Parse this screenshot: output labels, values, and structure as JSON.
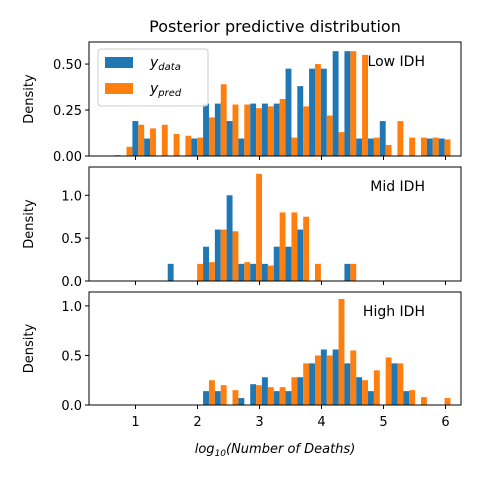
{
  "title": "Posterior predictive distribution",
  "colors": {
    "data": "#1f77b4",
    "pred": "#ff7f0e"
  },
  "legend": {
    "data_label": "y",
    "data_sub": "data",
    "pred_label": "y",
    "pred_sub": "pred"
  },
  "xlabel_pre": "log",
  "xlabel_sub": "10",
  "xlabel_post": "(Number of Deaths)",
  "ylabel": "Density",
  "x_ticks": [
    1,
    2,
    3,
    4,
    5,
    6
  ],
  "chart_data": [
    {
      "type": "bar",
      "panel_label": "Low IDH",
      "ylabel": "Density",
      "xlim": [
        0.25,
        6.25
      ],
      "ylim": [
        0,
        0.62
      ],
      "y_ticks": [
        0.0,
        0.25,
        0.5
      ],
      "y_tick_labels": [
        "0.00",
        "0.25",
        "0.50"
      ],
      "bin_width": 0.19,
      "legend": "upper-left",
      "bins": [
        0.57,
        0.76,
        0.95,
        1.14,
        1.33,
        1.52,
        1.71,
        1.9,
        2.09,
        2.28,
        2.47,
        2.66,
        2.85,
        3.04,
        3.23,
        3.42,
        3.61,
        3.8,
        3.99,
        4.18,
        4.37,
        4.56,
        4.75,
        4.94,
        5.13,
        5.32,
        5.51,
        5.7,
        5.89
      ],
      "series": [
        {
          "name": "y_data",
          "values": [
            0,
            0,
            0.19,
            0.095,
            0,
            0,
            0,
            0.095,
            0.285,
            0.285,
            0.19,
            0.095,
            0.285,
            0.285,
            0.285,
            0.475,
            0.38,
            0.475,
            0.475,
            0.57,
            0.57,
            0.095,
            0.095,
            0.19,
            0,
            0,
            0,
            0.095,
            0.095
          ]
        },
        {
          "name": "y_pred",
          "values": [
            0.005,
            0.05,
            0.17,
            0.15,
            0.17,
            0.12,
            0.11,
            0.1,
            0.21,
            0.39,
            0.28,
            0.28,
            0.26,
            0.27,
            0.31,
            0.1,
            0.27,
            0.5,
            0.22,
            0.13,
            0.57,
            0.55,
            0.1,
            0.06,
            0.19,
            0.1,
            0.1,
            0.1,
            0.09
          ]
        }
      ]
    },
    {
      "type": "bar",
      "panel_label": "Mid IDH",
      "ylabel": "Density",
      "xlim": [
        0.25,
        6.25
      ],
      "ylim": [
        0,
        1.33
      ],
      "y_ticks": [
        0.0,
        0.5,
        1.0
      ],
      "y_tick_labels": [
        "0.0",
        "0.5",
        "1.0"
      ],
      "bin_width": 0.19,
      "bins": [
        1.52,
        1.71,
        1.9,
        2.09,
        2.28,
        2.47,
        2.66,
        2.85,
        3.04,
        3.23,
        3.42,
        3.61,
        3.8,
        3.99,
        4.18,
        4.37
      ],
      "series": [
        {
          "name": "y_data",
          "values": [
            0.2,
            0,
            0,
            0.4,
            0.6,
            1.0,
            0.2,
            0.2,
            0.2,
            0.4,
            0.4,
            0.6,
            0,
            0,
            0,
            0.2
          ]
        },
        {
          "name": "y_pred",
          "values": [
            0,
            0,
            0.2,
            0.22,
            0.6,
            0.58,
            0.22,
            1.25,
            0.18,
            0.8,
            0.8,
            0.75,
            0.2,
            0,
            0,
            0.2
          ]
        }
      ]
    },
    {
      "type": "bar",
      "panel_label": "High IDH",
      "ylabel": "Density",
      "xlim": [
        0.25,
        6.25
      ],
      "ylim": [
        0,
        1.14
      ],
      "y_ticks": [
        0.0,
        0.5,
        1.0
      ],
      "y_tick_labels": [
        "0.0",
        "0.5",
        "1.0"
      ],
      "bin_width": 0.19,
      "bins": [
        2.09,
        2.28,
        2.47,
        2.66,
        2.85,
        3.04,
        3.23,
        3.42,
        3.61,
        3.8,
        3.99,
        4.18,
        4.37,
        4.56,
        4.75,
        4.94,
        5.13,
        5.32,
        5.51,
        5.7,
        5.89
      ],
      "series": [
        {
          "name": "y_data",
          "values": [
            0.14,
            0.14,
            0,
            0.07,
            0.21,
            0.28,
            0.14,
            0.14,
            0.28,
            0.42,
            0.56,
            0.56,
            0.42,
            0.28,
            0.14,
            0,
            0.42,
            0.14,
            0,
            0,
            0
          ]
        },
        {
          "name": "y_pred",
          "values": [
            0.25,
            0.2,
            0.15,
            0,
            0.2,
            0.18,
            0.18,
            0.28,
            0.42,
            0.5,
            0.5,
            1.07,
            0.55,
            0.25,
            0.35,
            0.48,
            0.42,
            0.15,
            0.08,
            0,
            0.07
          ]
        }
      ]
    }
  ]
}
